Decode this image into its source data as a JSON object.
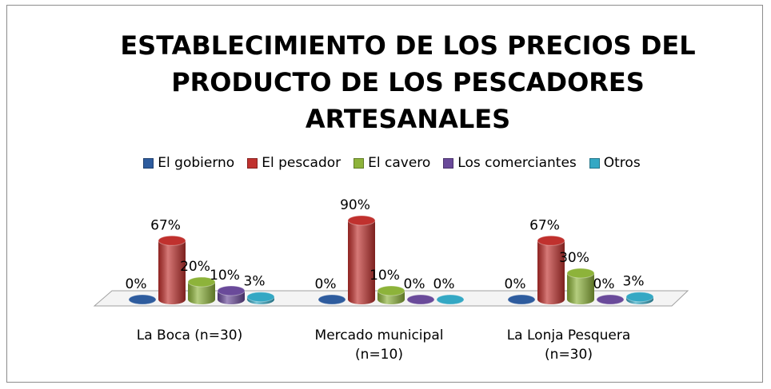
{
  "chart_data": {
    "type": "bar3d",
    "title": "ESTABLECIMIENTO DE LOS PRECIOS DEL PRODUCTO DE LOS PESCADORES ARTESANALES",
    "categories": [
      "La Boca (n=30)",
      "Mercado municipal (n=10)",
      "La Lonja Pesquera (n=30)"
    ],
    "series": [
      {
        "name": "El gobierno",
        "color": "#2e5c9e",
        "values": [
          0,
          0,
          0
        ],
        "value_labels": [
          "0%",
          "0%",
          "0%"
        ]
      },
      {
        "name": "El pescador",
        "color": "#c0312e",
        "values": [
          67,
          90,
          67
        ],
        "value_labels": [
          "67%",
          "90%",
          "67%"
        ]
      },
      {
        "name": "El cavero",
        "color": "#8db33a",
        "values": [
          20,
          10,
          30
        ],
        "value_labels": [
          "20%",
          "10%",
          "30%"
        ]
      },
      {
        "name": "Los comerciantes",
        "color": "#6a4a9a",
        "values": [
          10,
          0,
          0
        ],
        "value_labels": [
          "10%",
          "0%",
          "0%"
        ]
      },
      {
        "name": "Otros",
        "color": "#34a8c4",
        "values": [
          3,
          0,
          3
        ],
        "value_labels": [
          "3%",
          "0%",
          "3%"
        ]
      }
    ],
    "legend": "top"
  }
}
